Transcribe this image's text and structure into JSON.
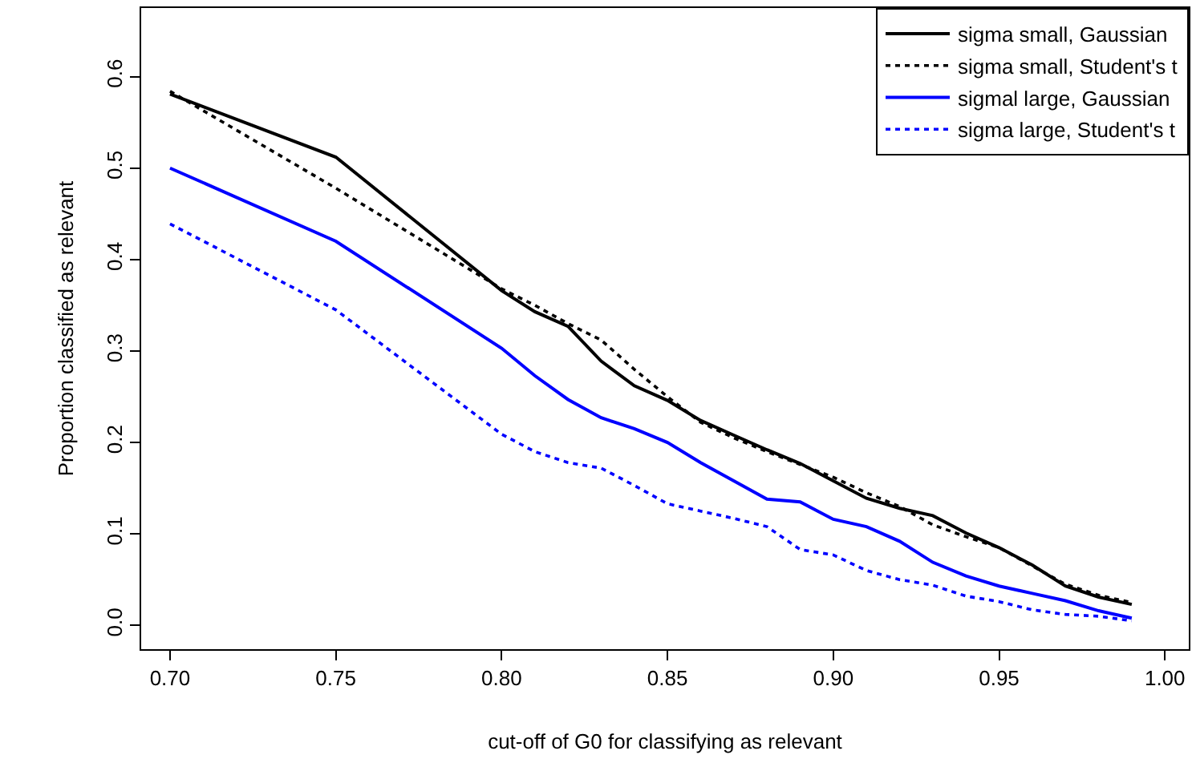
{
  "chart_data": {
    "type": "line",
    "xlabel": "cut-off of G0 for classifying as relevant",
    "ylabel": "Proportion classified as relevant",
    "x": [
      0.7,
      0.75,
      0.8,
      0.81,
      0.82,
      0.83,
      0.84,
      0.85,
      0.86,
      0.87,
      0.88,
      0.89,
      0.9,
      0.91,
      0.92,
      0.93,
      0.94,
      0.95,
      0.96,
      0.97,
      0.98,
      0.99
    ],
    "series": [
      {
        "name": "sigma small, Gaussian",
        "color": "#000000",
        "line_style": "solid",
        "values": [
          0.581,
          0.512,
          0.366,
          0.343,
          0.327,
          0.289,
          0.262,
          0.246,
          0.224,
          0.208,
          0.192,
          0.177,
          0.158,
          0.139,
          0.128,
          0.12,
          0.101,
          0.085,
          0.066,
          0.043,
          0.031,
          0.023
        ]
      },
      {
        "name": "sigma small, Student's t",
        "color": "#000000",
        "line_style": "dotted",
        "values": [
          0.584,
          0.478,
          0.368,
          0.35,
          0.33,
          0.312,
          0.28,
          0.25,
          0.222,
          0.205,
          0.19,
          0.176,
          0.162,
          0.145,
          0.13,
          0.11,
          0.097,
          0.085,
          0.065,
          0.045,
          0.033,
          0.025
        ]
      },
      {
        "name": "sigmal large, Gaussian",
        "color": "#0000ff",
        "line_style": "solid",
        "values": [
          0.5,
          0.42,
          0.303,
          0.273,
          0.247,
          0.227,
          0.215,
          0.2,
          0.178,
          0.158,
          0.138,
          0.135,
          0.116,
          0.108,
          0.092,
          0.069,
          0.054,
          0.043,
          0.035,
          0.027,
          0.016,
          0.008
        ]
      },
      {
        "name": "sigma large, Student's t",
        "color": "#0000ff",
        "line_style": "dotted",
        "values": [
          0.439,
          0.345,
          0.209,
          0.19,
          0.178,
          0.172,
          0.153,
          0.133,
          0.125,
          0.117,
          0.108,
          0.083,
          0.077,
          0.06,
          0.05,
          0.044,
          0.032,
          0.026,
          0.017,
          0.012,
          0.01,
          0.005
        ]
      }
    ],
    "xlim": [
      0.6913,
      1.0072
    ],
    "xticks": [
      {
        "value": 0.7,
        "label": "0.70"
      },
      {
        "value": 0.75,
        "label": "0.75"
      },
      {
        "value": 0.8,
        "label": "0.80"
      },
      {
        "value": 0.85,
        "label": "0.85"
      },
      {
        "value": 0.9,
        "label": "0.90"
      },
      {
        "value": 0.95,
        "label": "0.95"
      },
      {
        "value": 1.0,
        "label": "1.00"
      }
    ],
    "ylim": [
      -0.026,
      0.675
    ],
    "yticks": [
      {
        "value": 0.0,
        "label": "0.0"
      },
      {
        "value": 0.1,
        "label": "0.1"
      },
      {
        "value": 0.2,
        "label": "0.2"
      },
      {
        "value": 0.3,
        "label": "0.3"
      },
      {
        "value": 0.4,
        "label": "0.4"
      },
      {
        "value": 0.5,
        "label": "0.5"
      },
      {
        "value": 0.6,
        "label": "0.6"
      }
    ],
    "legend": "top right",
    "marker": "none"
  }
}
